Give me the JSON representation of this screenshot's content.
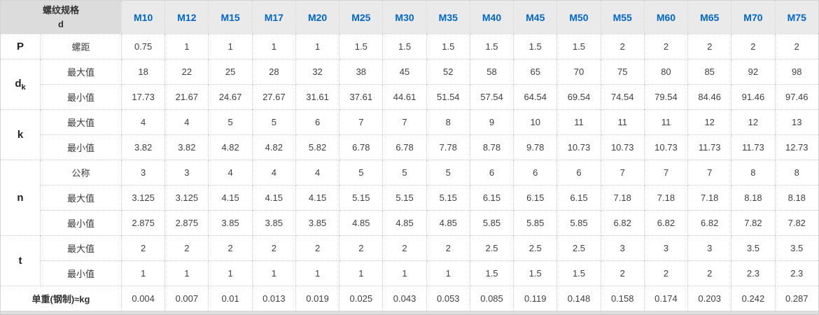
{
  "header": {
    "corner": {
      "line1": "螺纹规格",
      "line2": "d"
    },
    "columns": [
      "M10",
      "M12",
      "M15",
      "M17",
      "M20",
      "M25",
      "M30",
      "M35",
      "M40",
      "M45",
      "M50",
      "M55",
      "M60",
      "M65",
      "M70",
      "M75"
    ]
  },
  "body": {
    "groups": [
      {
        "label": "P",
        "subscript": "",
        "rows": [
          {
            "label": "螺距",
            "values": [
              "0.75",
              "1",
              "1",
              "1",
              "1",
              "1.5",
              "1.5",
              "1.5",
              "1.5",
              "1.5",
              "1.5",
              "2",
              "2",
              "2",
              "2",
              "2"
            ]
          }
        ]
      },
      {
        "label": "d",
        "subscript": "k",
        "rows": [
          {
            "label": "最大值",
            "values": [
              "18",
              "22",
              "25",
              "28",
              "32",
              "38",
              "45",
              "52",
              "58",
              "65",
              "70",
              "75",
              "80",
              "85",
              "92",
              "98"
            ]
          },
          {
            "label": "最小值",
            "values": [
              "17.73",
              "21.67",
              "24.67",
              "27.67",
              "31.61",
              "37.61",
              "44.61",
              "51.54",
              "57.54",
              "64.54",
              "69.54",
              "74.54",
              "79.54",
              "84.46",
              "91.46",
              "97.46"
            ]
          }
        ]
      },
      {
        "label": "k",
        "subscript": "",
        "rows": [
          {
            "label": "最大值",
            "values": [
              "4",
              "4",
              "5",
              "5",
              "6",
              "7",
              "7",
              "8",
              "9",
              "10",
              "11",
              "11",
              "11",
              "12",
              "12",
              "13"
            ]
          },
          {
            "label": "最小值",
            "values": [
              "3.82",
              "3.82",
              "4.82",
              "4.82",
              "5.82",
              "6.78",
              "6.78",
              "7.78",
              "8.78",
              "9.78",
              "10.73",
              "10.73",
              "10.73",
              "11.73",
              "11.73",
              "12.73"
            ]
          }
        ]
      },
      {
        "label": "n",
        "subscript": "",
        "rows": [
          {
            "label": "公称",
            "values": [
              "3",
              "3",
              "4",
              "4",
              "4",
              "5",
              "5",
              "5",
              "6",
              "6",
              "6",
              "7",
              "7",
              "7",
              "8",
              "8"
            ]
          },
          {
            "label": "最大值",
            "values": [
              "3.125",
              "3.125",
              "4.15",
              "4.15",
              "4.15",
              "5.15",
              "5.15",
              "5.15",
              "6.15",
              "6.15",
              "6.15",
              "7.18",
              "7.18",
              "7.18",
              "8.18",
              "8.18"
            ]
          },
          {
            "label": "最小值",
            "values": [
              "2.875",
              "2.875",
              "3.85",
              "3.85",
              "3.85",
              "4.85",
              "4.85",
              "4.85",
              "5.85",
              "5.85",
              "5.85",
              "6.82",
              "6.82",
              "6.82",
              "7.82",
              "7.82"
            ]
          }
        ]
      },
      {
        "label": "t",
        "subscript": "",
        "rows": [
          {
            "label": "最大值",
            "values": [
              "2",
              "2",
              "2",
              "2",
              "2",
              "2",
              "2",
              "2",
              "2.5",
              "2.5",
              "2.5",
              "3",
              "3",
              "3",
              "3.5",
              "3.5"
            ]
          },
          {
            "label": "最小值",
            "values": [
              "1",
              "1",
              "1",
              "1",
              "1",
              "1",
              "1",
              "1",
              "1.5",
              "1.5",
              "1.5",
              "2",
              "2",
              "2",
              "2.3",
              "2.3"
            ]
          }
        ]
      }
    ],
    "footer": {
      "label": "单重(钢制)≈kg",
      "values": [
        "0.004",
        "0.007",
        "0.01",
        "0.013",
        "0.019",
        "0.025",
        "0.043",
        "0.053",
        "0.085",
        "0.119",
        "0.148",
        "0.158",
        "0.174",
        "0.203",
        "0.242",
        "0.287"
      ]
    }
  },
  "colors": {
    "header_link_blue": "#0066cc",
    "corner_bg": "#dcdcdc",
    "header_bg": "#eaeaea",
    "border_dotted": "#c8c8c8"
  }
}
